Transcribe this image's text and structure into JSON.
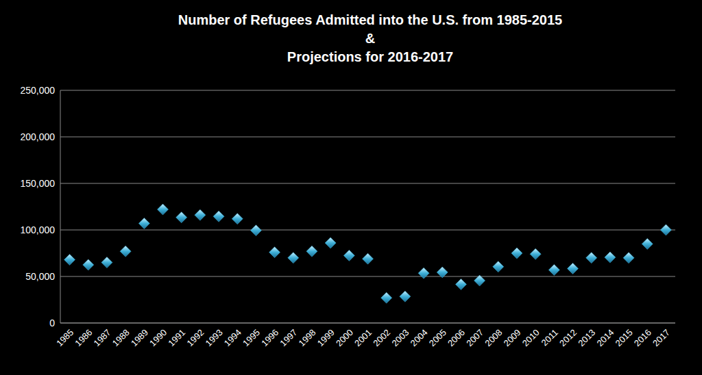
{
  "chart_data": {
    "type": "scatter",
    "title": "Number of Refugees Admitted into the U.S. from 1985-2015\n&\nProjections for 2016-2017",
    "categories": [
      "1985",
      "1986",
      "1987",
      "1988",
      "1989",
      "1990",
      "1991",
      "1992",
      "1993",
      "1994",
      "1995",
      "1996",
      "1997",
      "1998",
      "1999",
      "2000",
      "2001",
      "2002",
      "2003",
      "2004",
      "2005",
      "2006",
      "2007",
      "2008",
      "2009",
      "2010",
      "2011",
      "2012",
      "2013",
      "2014",
      "2015",
      "2016",
      "2017"
    ],
    "values": [
      68000,
      62500,
      65000,
      77000,
      107000,
      122000,
      113500,
      116000,
      114500,
      112000,
      99500,
      76000,
      70000,
      77000,
      86000,
      72500,
      69000,
      27000,
      28500,
      53500,
      54500,
      41500,
      45500,
      60500,
      75000,
      74000,
      57000,
      58500,
      70000,
      70500,
      70000,
      85000,
      100000
    ],
    "color": "#3fb0d8",
    "marker": "diamond",
    "ylim": [
      0,
      250000
    ],
    "yticks": [
      0,
      {
        "value": 50000,
        "label": "50,000"
      },
      {
        "value": 100000,
        "label": "100,000"
      },
      {
        "value": 150000,
        "label": "150,000"
      },
      {
        "value": 200000,
        "label": "200,000"
      },
      {
        "value": 250000,
        "label": "250,000"
      }
    ],
    "grid": true
  }
}
